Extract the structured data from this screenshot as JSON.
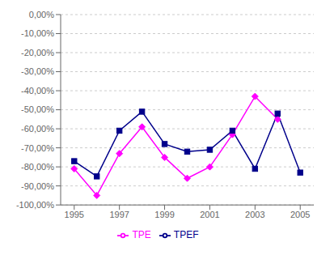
{
  "chart_data": {
    "type": "line",
    "x": [
      1995,
      1996,
      1997,
      1998,
      1999,
      2000,
      2001,
      2002,
      2003,
      2004,
      2005
    ],
    "series": [
      {
        "name": "TPE",
        "color": "#FF00FF",
        "marker": "diamond",
        "values": [
          -0.81,
          -0.95,
          -0.73,
          -0.59,
          -0.75,
          -0.86,
          -0.8,
          -0.63,
          -0.43,
          -0.55,
          null
        ]
      },
      {
        "name": "TPEF",
        "color": "#00008B",
        "marker": "square",
        "values": [
          -0.77,
          -0.85,
          -0.61,
          -0.51,
          -0.68,
          -0.72,
          -0.71,
          -0.61,
          -0.81,
          -0.52,
          -0.83
        ]
      }
    ],
    "xlim": [
      1994.4,
      2005.6
    ],
    "xticks": [
      1995,
      1997,
      1999,
      2001,
      2003,
      2005
    ],
    "ylim": [
      -1.0,
      0.0
    ],
    "yticks": [
      {
        "value": 0.0,
        "label": "0,00%"
      },
      {
        "value": -0.1,
        "label": "-10,00%"
      },
      {
        "value": -0.2,
        "label": "-20,00%"
      },
      {
        "value": -0.3,
        "label": "-30,00%"
      },
      {
        "value": -0.4,
        "label": "-40,00%"
      },
      {
        "value": -0.5,
        "label": "-50,00%"
      },
      {
        "value": -0.6,
        "label": "-60,00%"
      },
      {
        "value": -0.7,
        "label": "-70,00%"
      },
      {
        "value": -0.8,
        "label": "-80,00%"
      },
      {
        "value": -0.9,
        "label": "-90,00%"
      },
      {
        "value": -1.0,
        "label": "-100,00%"
      }
    ],
    "grid": true,
    "legend": "bottom"
  }
}
